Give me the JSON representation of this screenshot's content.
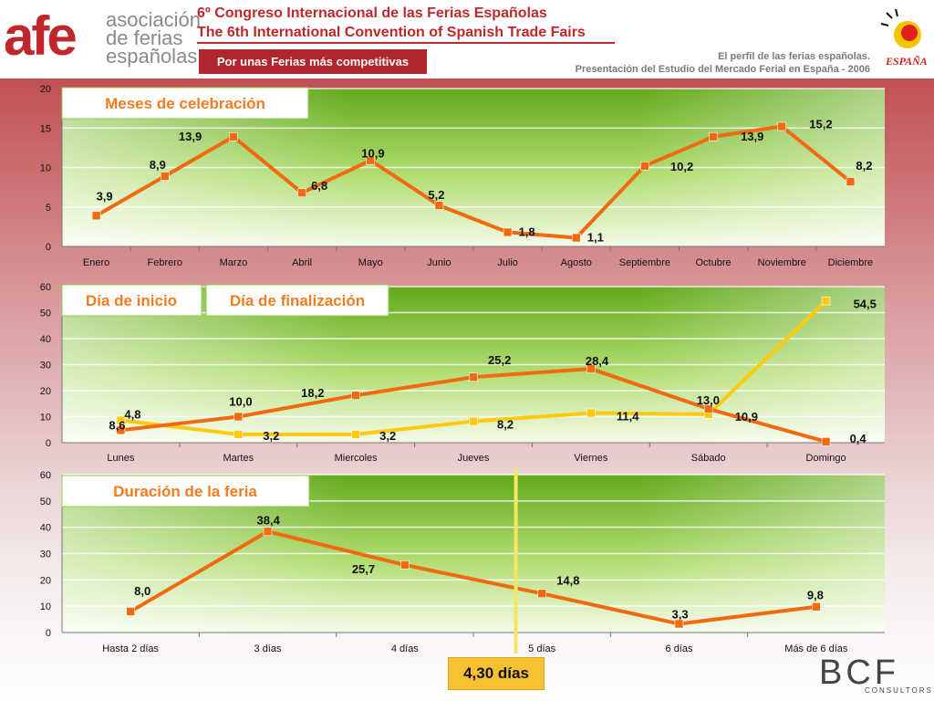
{
  "header": {
    "logo_mark": "afe",
    "logo_lines": [
      "asociación",
      "de ferias",
      "españolas"
    ],
    "title_es": "6º Congreso Internacional de las Ferias Españolas",
    "title_en": "The 6th International Convention of Spanish Trade Fairs",
    "tagline": "Por unas Ferias más competitivas",
    "subtitle1": "El perfil de las ferias españolas.",
    "subtitle2": "Presentación del Estudio del Mercado Ferial en España - 2006",
    "espana_logo_text": "ESPAÑA"
  },
  "footer": {
    "average_label": "4,30 días",
    "bcf_logo_text": "BCF",
    "bcf_sub": "CONSULTORS"
  },
  "colors": {
    "brand_red": "#c0272d",
    "series_orange": "#f26a10",
    "series_yellow": "#ffc90e",
    "plot_green": "#6fbf1c",
    "title_text": "#f47c20",
    "avg_line": "#f5e66a"
  },
  "chart_data": [
    {
      "type": "line",
      "title": "Meses de celebración",
      "categories": [
        "Enero",
        "Febrero",
        "Marzo",
        "Abril",
        "Mayo",
        "Junio",
        "Julio",
        "Agosto",
        "Septiembre",
        "Octubre",
        "Noviembre",
        "Diciembre"
      ],
      "series": [
        {
          "values": [
            3.9,
            8.9,
            13.9,
            6.8,
            10.9,
            5.2,
            1.8,
            1.1,
            10.2,
            13.9,
            15.2,
            8.2
          ],
          "labels": [
            "3,9",
            "8,9",
            "13,9",
            "6,8",
            "10,9",
            "5,2",
            "1,8",
            "1,1",
            "10,2",
            "13,9",
            "15,2",
            "8,2"
          ],
          "color": "#f26a10"
        }
      ],
      "ylim": [
        0,
        20
      ],
      "yticks": [
        0,
        5,
        10,
        15,
        20
      ],
      "grid": true
    },
    {
      "type": "line",
      "title": "",
      "legend": [
        "Día de inicio",
        "Día de finalización"
      ],
      "categories": [
        "Lunes",
        "Martes",
        "Miercoles",
        "Jueves",
        "Viernes",
        "Sábado",
        "Domingo"
      ],
      "series": [
        {
          "name": "Día de inicio",
          "values": [
            4.8,
            10.0,
            18.2,
            25.2,
            28.4,
            13.0,
            0.4
          ],
          "labels": [
            "4,8",
            "10,0",
            "18,2",
            "25,2",
            "28,4",
            "13,0",
            "0,4"
          ],
          "color": "#f26a10"
        },
        {
          "name": "Día de finalización",
          "values": [
            8.6,
            3.2,
            3.2,
            8.2,
            11.4,
            10.9,
            54.5
          ],
          "labels": [
            "8,6",
            "3,2",
            "3,2",
            "8,2",
            "11,4",
            "10,9",
            "54,5"
          ],
          "color": "#ffc90e"
        }
      ],
      "ylim": [
        0,
        60
      ],
      "yticks": [
        0,
        10,
        20,
        30,
        40,
        50,
        60
      ],
      "grid": true
    },
    {
      "type": "line",
      "title": "Duración de la feria",
      "categories": [
        "Hasta 2 días",
        "3 días",
        "4 días",
        "5 días",
        "6 días",
        "Más de 6 días"
      ],
      "series": [
        {
          "values": [
            8.0,
            38.4,
            25.7,
            14.8,
            3.3,
            9.8
          ],
          "labels": [
            "8,0",
            "38,4",
            "25,7",
            "14,8",
            "3,3",
            "9,8"
          ],
          "color": "#f26a10"
        }
      ],
      "ylim": [
        0,
        60
      ],
      "yticks": [
        0,
        10,
        20,
        30,
        40,
        50,
        60
      ],
      "average_marker": {
        "value": 4.3,
        "label": "4,30 días"
      },
      "grid": true
    }
  ]
}
